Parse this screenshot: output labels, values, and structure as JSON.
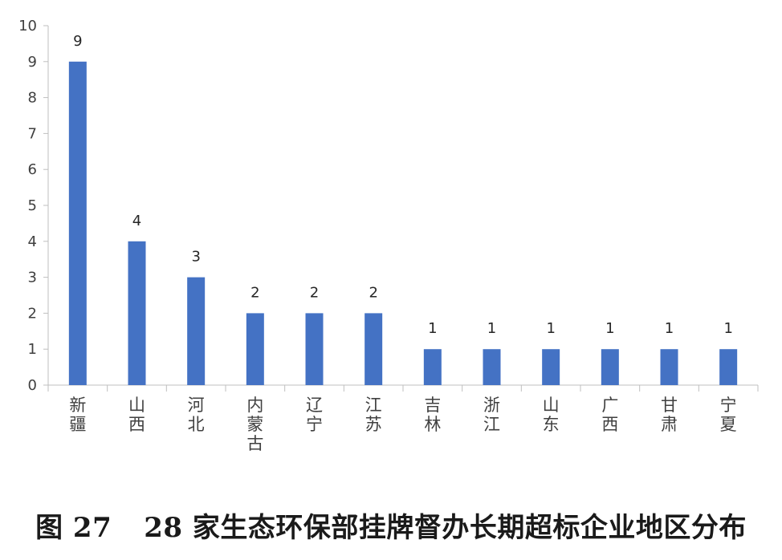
{
  "chart_data": {
    "type": "bar",
    "title": "",
    "xlabel": "",
    "ylabel": "",
    "ylim": [
      0,
      10
    ],
    "yticks": [
      "0",
      "1",
      "2",
      "3",
      "4",
      "5",
      "6",
      "7",
      "8",
      "9",
      "10"
    ],
    "categories": [
      "新疆",
      "山西",
      "河北",
      "内蒙古",
      "辽宁",
      "江苏",
      "吉林",
      "浙江",
      "山东",
      "广西",
      "甘肃",
      "宁夏"
    ],
    "values": [
      9,
      4,
      3,
      2,
      2,
      2,
      1,
      1,
      1,
      1,
      1,
      1
    ],
    "data_labels": [
      "9",
      "4",
      "3",
      "2",
      "2",
      "2",
      "1",
      "1",
      "1",
      "1",
      "1",
      "1"
    ],
    "bar_color": "#4472C4",
    "grid": false,
    "legend": "none"
  },
  "caption": {
    "figure_number": "图 27",
    "text": "28 家生态环保部挂牌督办长期超标企业地区分布"
  }
}
